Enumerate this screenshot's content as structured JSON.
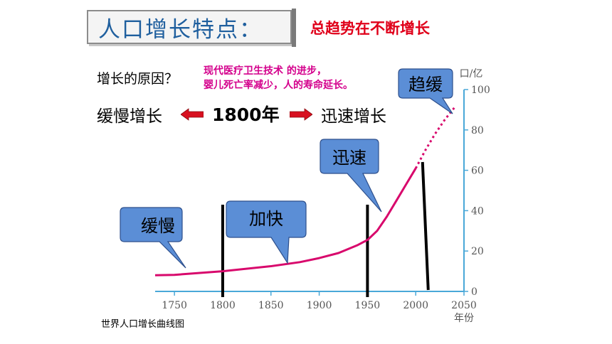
{
  "slide": {
    "title": "人口增长特点：",
    "trend": "总趋势在不断增长",
    "reason_question": "增长的原因？",
    "reason_answer_line1": "现代医疗卫生技术 的进步，",
    "reason_answer_line2": "婴儿死亡率减少，人的寿命延长。",
    "slow_label": "缓慢增长",
    "turning_year": "1800年",
    "fast_label": "迅速增长",
    "caption": "世界人口增长曲线图"
  },
  "bubbles": {
    "slow": "缓慢",
    "faster": "加快",
    "rapid": "迅速",
    "slowing": "趋缓"
  },
  "chart_data": {
    "type": "line",
    "title": "",
    "xlabel": "年份",
    "ylabel": "口/亿",
    "xlim": [
      1730,
      2050
    ],
    "ylim": [
      0,
      100
    ],
    "x_ticks": [
      "1750",
      "1800",
      "1850",
      "1900",
      "1950",
      "2000",
      "2050"
    ],
    "y_ticks": [
      "0",
      "20",
      "40",
      "60",
      "80",
      "100"
    ],
    "series": [
      {
        "values": [
          {
            "x": 1730,
            "y": 8
          },
          {
            "x": 1750,
            "y": 8.2
          },
          {
            "x": 1800,
            "y": 10
          },
          {
            "x": 1850,
            "y": 12.5
          },
          {
            "x": 1880,
            "y": 14.5
          },
          {
            "x": 1900,
            "y": 16.5
          },
          {
            "x": 1920,
            "y": 19
          },
          {
            "x": 1940,
            "y": 23
          },
          {
            "x": 1950,
            "y": 25.5
          },
          {
            "x": 1960,
            "y": 30
          },
          {
            "x": 1970,
            "y": 37
          },
          {
            "x": 1980,
            "y": 45
          },
          {
            "x": 1990,
            "y": 53
          },
          {
            "x": 2000,
            "y": 61
          }
        ],
        "projected": [
          {
            "x": 2000,
            "y": 61
          },
          {
            "x": 2010,
            "y": 70
          },
          {
            "x": 2020,
            "y": 78
          },
          {
            "x": 2030,
            "y": 85
          },
          {
            "x": 2040,
            "y": 91
          }
        ]
      }
    ],
    "markers_x": [
      1800,
      1950,
      2010
    ],
    "colors": {
      "line": "#d8086c",
      "axis": "#4aa8d8",
      "tick_text": "#555555",
      "bubble": "#5b8ed6"
    }
  }
}
